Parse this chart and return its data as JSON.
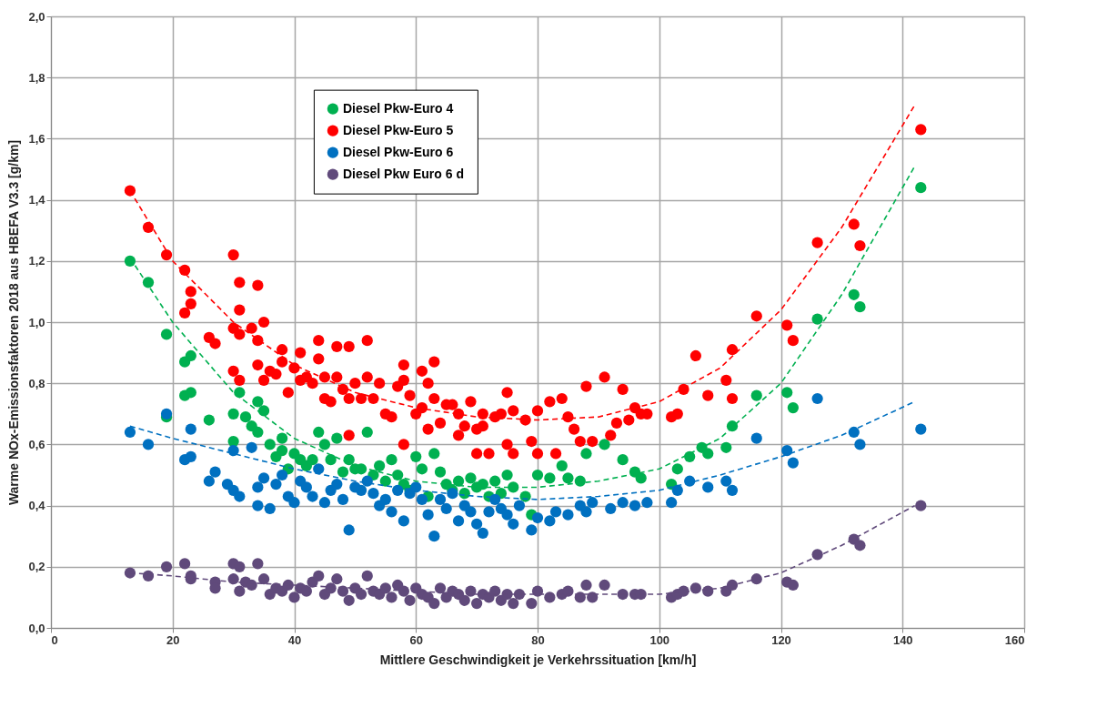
{
  "chart_data": {
    "type": "scatter",
    "xlabel": "Mittlere Geschwindigkeit je Verkehrssituation [km/h]",
    "ylabel": "Warme NOx-Emissionsfaktoren 2018 aus HBEFA V3.3 [g/km]",
    "xlim": [
      0,
      160
    ],
    "xticks": [
      0,
      20,
      40,
      60,
      80,
      100,
      120,
      140,
      160
    ],
    "ylim": [
      0,
      2.0
    ],
    "yticks": [
      {
        "value": 0,
        "label": "0,0"
      },
      {
        "value": 0.2,
        "label": "0,2"
      },
      {
        "value": 0.4,
        "label": "0,4"
      },
      {
        "value": 0.6,
        "label": "0,6"
      },
      {
        "value": 0.8,
        "label": "0,8"
      },
      {
        "value": 1.0,
        "label": "1,0"
      },
      {
        "value": 1.2,
        "label": "1,2"
      },
      {
        "value": 1.4,
        "label": "1,4"
      },
      {
        "value": 1.6,
        "label": "1,6"
      },
      {
        "value": 1.8,
        "label": "1,8"
      },
      {
        "value": 2.0,
        "label": "2,0"
      }
    ],
    "grid": true,
    "legend": "top",
    "marker": "circle",
    "series": [
      {
        "name": "Diesel Pkw-Euro 4",
        "color": "#00b050",
        "x": [
          13,
          16,
          19,
          22,
          23,
          22,
          23,
          19,
          26,
          30,
          30,
          31,
          32,
          33,
          34,
          34,
          35,
          36,
          37,
          38,
          38,
          39,
          40,
          41,
          42,
          43,
          44,
          45,
          46,
          47,
          48,
          49,
          50,
          51,
          52,
          53,
          54,
          55,
          56,
          57,
          58,
          59,
          60,
          61,
          62,
          63,
          64,
          65,
          66,
          67,
          68,
          69,
          70,
          71,
          72,
          73,
          74,
          75,
          76,
          78,
          79,
          80,
          82,
          84,
          85,
          87,
          88,
          91,
          94,
          96,
          97,
          102,
          103,
          105,
          107,
          108,
          111,
          112,
          116,
          121,
          122,
          126,
          132,
          133,
          143
        ],
        "values": [
          1.2,
          1.13,
          0.96,
          0.87,
          0.89,
          0.76,
          0.77,
          0.69,
          0.68,
          0.7,
          0.61,
          0.77,
          0.69,
          0.66,
          0.64,
          0.74,
          0.71,
          0.6,
          0.56,
          0.62,
          0.58,
          0.52,
          0.57,
          0.55,
          0.53,
          0.55,
          0.64,
          0.6,
          0.55,
          0.62,
          0.51,
          0.55,
          0.52,
          0.52,
          0.64,
          0.5,
          0.53,
          0.48,
          0.55,
          0.5,
          0.47,
          0.45,
          0.56,
          0.52,
          0.43,
          0.57,
          0.51,
          0.47,
          0.45,
          0.48,
          0.44,
          0.49,
          0.46,
          0.47,
          0.43,
          0.48,
          0.44,
          0.5,
          0.46,
          0.43,
          0.37,
          0.5,
          0.49,
          0.53,
          0.49,
          0.48,
          0.57,
          0.6,
          0.55,
          0.51,
          0.49,
          0.47,
          0.52,
          0.56,
          0.59,
          0.57,
          0.59,
          0.66,
          0.76,
          0.77,
          0.72,
          1.01,
          1.09,
          1.05,
          1.44
        ]
      },
      {
        "name": "Diesel Pkw-Euro 5",
        "color": "#ff0000",
        "x": [
          13,
          16,
          19,
          22,
          22,
          23,
          23,
          26,
          27,
          30,
          30,
          30,
          31,
          31,
          31,
          31,
          33,
          34,
          34,
          34,
          35,
          35,
          36,
          37,
          38,
          38,
          39,
          40,
          41,
          41,
          42,
          43,
          44,
          44,
          45,
          45,
          46,
          47,
          47,
          48,
          49,
          49,
          49,
          50,
          51,
          52,
          52,
          53,
          54,
          55,
          56,
          57,
          58,
          58,
          58,
          59,
          60,
          61,
          61,
          62,
          62,
          63,
          63,
          64,
          65,
          66,
          67,
          67,
          68,
          69,
          70,
          70,
          71,
          71,
          72,
          73,
          74,
          75,
          75,
          76,
          76,
          78,
          79,
          80,
          80,
          82,
          83,
          84,
          85,
          86,
          87,
          88,
          89,
          91,
          92,
          93,
          94,
          95,
          96,
          97,
          98,
          102,
          103,
          104,
          106,
          108,
          111,
          112,
          112,
          116,
          121,
          122,
          126,
          132,
          133,
          143
        ],
        "values": [
          1.43,
          1.31,
          1.22,
          1.17,
          1.03,
          1.06,
          1.1,
          0.95,
          0.93,
          1.22,
          0.98,
          0.84,
          0.81,
          0.96,
          1.04,
          1.13,
          0.98,
          1.12,
          0.94,
          0.86,
          0.81,
          1.0,
          0.84,
          0.83,
          0.87,
          0.91,
          0.77,
          0.85,
          0.9,
          0.81,
          0.82,
          0.8,
          0.88,
          0.94,
          0.75,
          0.82,
          0.74,
          0.92,
          0.82,
          0.78,
          0.63,
          0.92,
          0.75,
          0.8,
          0.75,
          0.94,
          0.82,
          0.75,
          0.8,
          0.7,
          0.69,
          0.79,
          0.86,
          0.81,
          0.6,
          0.76,
          0.7,
          0.72,
          0.84,
          0.8,
          0.65,
          0.75,
          0.87,
          0.67,
          0.73,
          0.73,
          0.7,
          0.63,
          0.66,
          0.74,
          0.57,
          0.65,
          0.7,
          0.66,
          0.57,
          0.69,
          0.7,
          0.6,
          0.77,
          0.71,
          0.57,
          0.68,
          0.61,
          0.57,
          0.71,
          0.74,
          0.57,
          0.75,
          0.69,
          0.65,
          0.61,
          0.79,
          0.61,
          0.82,
          0.63,
          0.67,
          0.78,
          0.68,
          0.72,
          0.7,
          0.7,
          0.69,
          0.7,
          0.78,
          0.89,
          0.76,
          0.81,
          0.91,
          0.75,
          1.02,
          0.99,
          0.94,
          1.26,
          1.32,
          1.25,
          1.63
        ]
      },
      {
        "name": "Diesel Pkw-Euro 6",
        "color": "#0070c0",
        "x": [
          13,
          16,
          19,
          22,
          23,
          23,
          26,
          27,
          29,
          30,
          30,
          31,
          33,
          34,
          34,
          35,
          36,
          37,
          38,
          39,
          40,
          41,
          42,
          43,
          44,
          45,
          46,
          47,
          48,
          49,
          50,
          51,
          52,
          53,
          54,
          55,
          56,
          57,
          58,
          59,
          60,
          61,
          62,
          63,
          64,
          65,
          66,
          67,
          68,
          69,
          70,
          71,
          72,
          73,
          74,
          75,
          76,
          77,
          79,
          80,
          82,
          83,
          85,
          87,
          88,
          89,
          92,
          94,
          96,
          98,
          102,
          103,
          105,
          108,
          111,
          112,
          116,
          121,
          122,
          126,
          132,
          133,
          143
        ],
        "values": [
          0.64,
          0.6,
          0.7,
          0.55,
          0.56,
          0.65,
          0.48,
          0.51,
          0.47,
          0.45,
          0.58,
          0.43,
          0.59,
          0.4,
          0.46,
          0.49,
          0.39,
          0.47,
          0.5,
          0.43,
          0.41,
          0.48,
          0.46,
          0.43,
          0.52,
          0.41,
          0.45,
          0.47,
          0.42,
          0.32,
          0.46,
          0.45,
          0.48,
          0.44,
          0.4,
          0.42,
          0.38,
          0.45,
          0.35,
          0.44,
          0.46,
          0.42,
          0.37,
          0.3,
          0.42,
          0.39,
          0.44,
          0.35,
          0.4,
          0.38,
          0.34,
          0.31,
          0.38,
          0.42,
          0.39,
          0.37,
          0.34,
          0.4,
          0.32,
          0.36,
          0.35,
          0.38,
          0.37,
          0.4,
          0.38,
          0.41,
          0.39,
          0.41,
          0.4,
          0.41,
          0.41,
          0.45,
          0.48,
          0.46,
          0.48,
          0.45,
          0.62,
          0.58,
          0.54,
          0.75,
          0.64,
          0.6,
          0.65
        ]
      },
      {
        "name": "Diesel Pkw Euro 6 d",
        "color": "#604a7b",
        "x": [
          13,
          16,
          19,
          22,
          23,
          23,
          27,
          27,
          30,
          30,
          31,
          31,
          32,
          33,
          34,
          35,
          36,
          37,
          38,
          39,
          40,
          41,
          42,
          43,
          44,
          45,
          46,
          47,
          48,
          49,
          50,
          51,
          52,
          53,
          54,
          55,
          56,
          57,
          58,
          59,
          60,
          61,
          62,
          63,
          64,
          65,
          66,
          67,
          68,
          69,
          70,
          71,
          72,
          73,
          74,
          75,
          76,
          77,
          79,
          80,
          82,
          84,
          85,
          87,
          88,
          89,
          91,
          94,
          96,
          97,
          102,
          103,
          104,
          106,
          108,
          111,
          112,
          116,
          121,
          122,
          126,
          132,
          133,
          143
        ],
        "values": [
          0.18,
          0.17,
          0.2,
          0.21,
          0.16,
          0.17,
          0.15,
          0.13,
          0.21,
          0.16,
          0.12,
          0.2,
          0.15,
          0.14,
          0.21,
          0.16,
          0.11,
          0.13,
          0.12,
          0.14,
          0.1,
          0.13,
          0.12,
          0.15,
          0.17,
          0.11,
          0.13,
          0.16,
          0.12,
          0.09,
          0.13,
          0.11,
          0.17,
          0.12,
          0.11,
          0.13,
          0.1,
          0.14,
          0.12,
          0.09,
          0.13,
          0.11,
          0.1,
          0.08,
          0.13,
          0.1,
          0.12,
          0.11,
          0.09,
          0.12,
          0.08,
          0.11,
          0.1,
          0.12,
          0.09,
          0.11,
          0.08,
          0.11,
          0.08,
          0.12,
          0.1,
          0.11,
          0.12,
          0.1,
          0.14,
          0.1,
          0.14,
          0.11,
          0.11,
          0.11,
          0.1,
          0.11,
          0.12,
          0.13,
          0.12,
          0.12,
          0.14,
          0.16,
          0.15,
          0.14,
          0.24,
          0.29,
          0.27,
          0.4
        ]
      },
      {
        "type": "line",
        "color": "#ff0000",
        "line_style": "dashed",
        "marker": "none",
        "x": [
          13,
          20,
          30,
          40,
          50,
          60,
          70,
          80,
          90,
          100,
          110,
          120,
          130,
          142
        ],
        "values": [
          1.43,
          1.2,
          1.0,
          0.86,
          0.77,
          0.72,
          0.69,
          0.68,
          0.69,
          0.74,
          0.85,
          1.04,
          1.31,
          1.71
        ]
      },
      {
        "type": "line",
        "color": "#00b050",
        "line_style": "dashed",
        "marker": "none",
        "x": [
          13,
          20,
          30,
          40,
          50,
          60,
          70,
          80,
          90,
          100,
          110,
          120,
          130,
          142
        ],
        "values": [
          1.21,
          1.0,
          0.77,
          0.62,
          0.53,
          0.48,
          0.46,
          0.46,
          0.48,
          0.52,
          0.62,
          0.8,
          1.09,
          1.51
        ]
      },
      {
        "type": "line",
        "color": "#0070c0",
        "line_style": "dashed",
        "marker": "none",
        "x": [
          13,
          20,
          30,
          40,
          50,
          60,
          70,
          80,
          90,
          100,
          110,
          120,
          130,
          142
        ],
        "values": [
          0.66,
          0.62,
          0.57,
          0.52,
          0.48,
          0.45,
          0.43,
          0.42,
          0.43,
          0.45,
          0.5,
          0.56,
          0.63,
          0.74
        ]
      },
      {
        "type": "line",
        "color": "#604a7b",
        "line_style": "dashed",
        "marker": "none",
        "x": [
          13,
          20,
          30,
          40,
          50,
          60,
          70,
          80,
          90,
          100,
          110,
          120,
          130,
          142
        ],
        "values": [
          0.18,
          0.17,
          0.15,
          0.14,
          0.13,
          0.12,
          0.11,
          0.11,
          0.11,
          0.11,
          0.13,
          0.18,
          0.27,
          0.4
        ]
      }
    ]
  }
}
